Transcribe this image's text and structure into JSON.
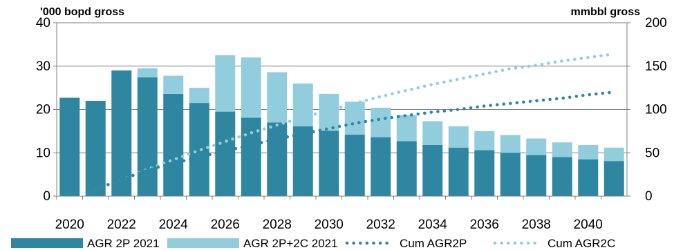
{
  "chart_data": {
    "type": "bar",
    "stacked": true,
    "categories": [
      "2020",
      "2021",
      "2022",
      "2023",
      "2024",
      "2025",
      "2026",
      "2027",
      "2028",
      "2029",
      "2030",
      "2031",
      "2032",
      "2033",
      "2034",
      "2035",
      "2036",
      "2037",
      "2038",
      "2039",
      "2040",
      "2041"
    ],
    "x_tick_labels": [
      "2020",
      "2022",
      "2024",
      "2026",
      "2028",
      "2030",
      "2032",
      "2034",
      "2036",
      "2038",
      "2040"
    ],
    "y_left": {
      "label": "'000 bopd gross",
      "ylim": [
        0,
        40
      ],
      "ticks": [
        "0",
        "10",
        "20",
        "30",
        "40"
      ]
    },
    "y_right": {
      "label": "mmbbl gross",
      "ylim": [
        0,
        200
      ],
      "ticks": [
        "0",
        "50",
        "100",
        "150",
        "200"
      ]
    },
    "grid": true,
    "legend_position": "bottom",
    "colors": {
      "2p": "#2e86a0",
      "2pc": "#92cddd",
      "cum2p": "#2e86a0",
      "cum2c": "#92cddd",
      "grid": "#7f7f7f"
    },
    "series": [
      {
        "name": "AGR 2P 2021",
        "kind": "bar",
        "axis": "left",
        "values": [
          22.7,
          22.0,
          29.0,
          27.4,
          23.6,
          21.5,
          19.5,
          18.1,
          17.0,
          16.1,
          15.1,
          14.2,
          13.6,
          12.7,
          11.8,
          11.2,
          10.6,
          10.0,
          9.5,
          9.0,
          8.5,
          8.1
        ]
      },
      {
        "name": "AGR 2P+2C 2021",
        "kind": "bar",
        "axis": "left",
        "values": [
          0,
          0,
          0,
          2.1,
          4.2,
          3.5,
          13.0,
          13.9,
          11.6,
          9.9,
          8.5,
          7.6,
          6.8,
          6.0,
          5.5,
          4.9,
          4.4,
          4.1,
          3.8,
          3.4,
          3.3,
          3.1
        ]
      },
      {
        "name": "Cum AGR2P",
        "kind": "line",
        "axis": "right",
        "values": [
          null,
          8,
          19,
          30,
          38,
          45,
          52,
          59,
          66,
          72,
          78,
          84,
          89,
          93,
          97,
          100,
          104,
          107,
          110,
          113,
          117,
          120
        ]
      },
      {
        "name": "Cum AGR2C",
        "kind": "line",
        "axis": "right",
        "values": [
          null,
          8,
          19,
          31,
          42,
          53,
          63,
          73,
          82,
          91,
          99,
          107,
          115,
          122,
          129,
          135,
          141,
          147,
          151,
          156,
          160,
          164
        ]
      }
    ]
  }
}
